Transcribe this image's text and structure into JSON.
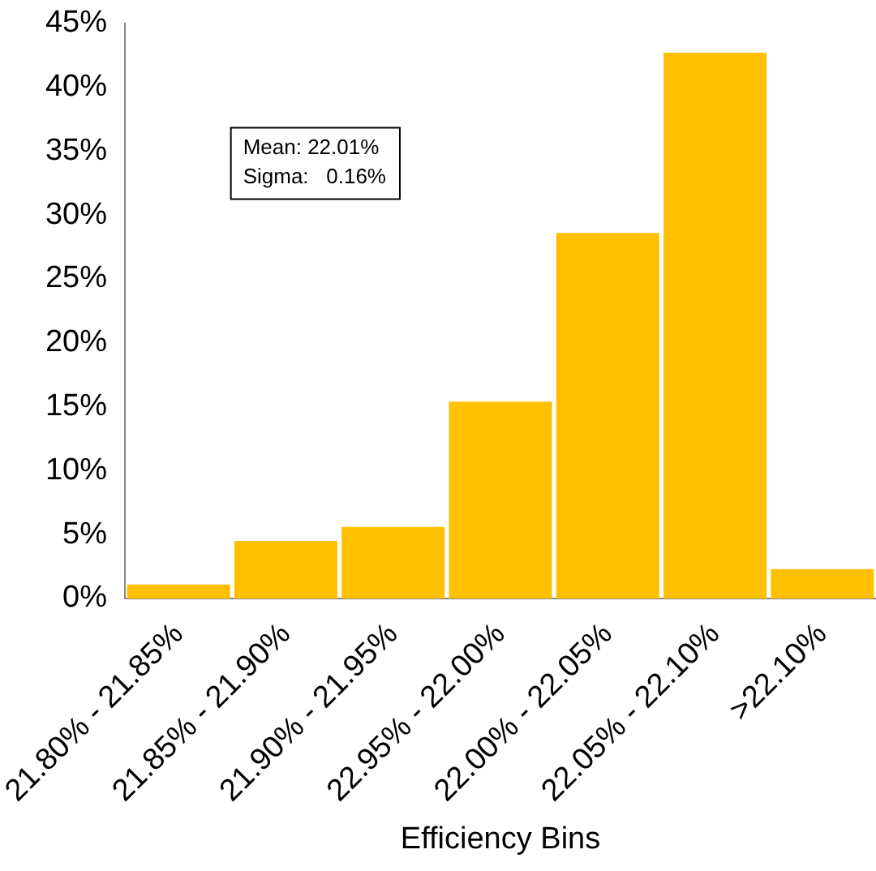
{
  "chart_data": {
    "type": "bar",
    "xlabel": "Efficiency Bins",
    "categories": [
      "21.80% - 21.85%",
      "21.85% - 21.90%",
      "21.90% - 21.95%",
      "22.95% - 22.00%",
      "22.00% - 22.05%",
      "22.05% - 22.10%",
      ">22.10%"
    ],
    "values": [
      1.1,
      4.5,
      5.6,
      15.4,
      28.6,
      42.7,
      2.3
    ],
    "color": "#ffc000",
    "ylim": [
      0,
      45
    ],
    "yticks": [
      {
        "value": 0,
        "label": "0%"
      },
      {
        "value": 5,
        "label": "5%"
      },
      {
        "value": 10,
        "label": "10%"
      },
      {
        "value": 15,
        "label": "15%"
      },
      {
        "value": 20,
        "label": "20%"
      },
      {
        "value": 25,
        "label": "25%"
      },
      {
        "value": 30,
        "label": "30%"
      },
      {
        "value": 35,
        "label": "35%"
      },
      {
        "value": 40,
        "label": "40%"
      },
      {
        "value": 45,
        "label": "45%"
      }
    ],
    "grid": false,
    "legend": false,
    "annotations": [
      "Mean: 22.01%",
      "Sigma:   0.16%"
    ]
  }
}
